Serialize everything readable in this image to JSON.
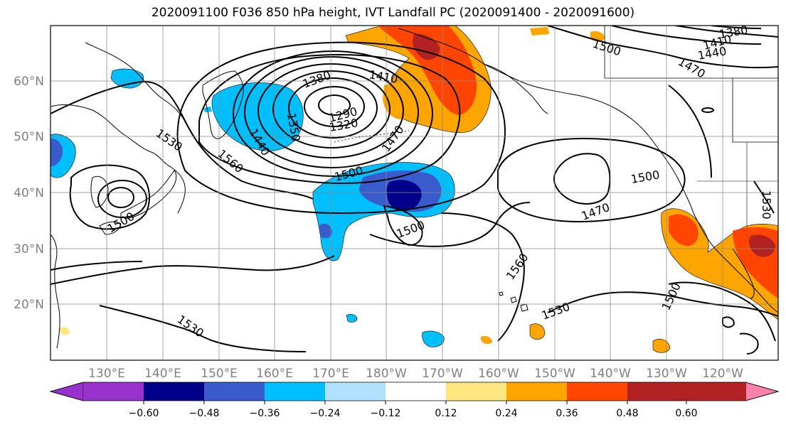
{
  "title": "2020091100 F036 850 hPa height, IVT Landfall PC (2020091400 - 2020091600)",
  "lat_labels": [
    "60°N",
    "50°N",
    "40°N",
    "30°N",
    "20°N"
  ],
  "lon_labels": [
    "130°E",
    "140°E",
    "150°E",
    "160°E",
    "170°E",
    "180°W",
    "170°W",
    "160°W",
    "150°W",
    "140°W",
    "130°W",
    "120°W"
  ],
  "colorbar": {
    "ticks": [
      "−0.60",
      "−0.48",
      "−0.36",
      "−0.24",
      "−0.12",
      "0.12",
      "0.24",
      "0.36",
      "0.48",
      "0.60"
    ],
    "colors": [
      "#9932cc",
      "#00008b",
      "#3a5bcc",
      "#00bfff",
      "#b0e2ff",
      "#ffffff",
      "#ffe680",
      "#ffa500",
      "#ff4500",
      "#b22222",
      "#ff82ab"
    ]
  },
  "contour_labels": [
    {
      "text": "1380"
    },
    {
      "text": "1410"
    },
    {
      "text": "1350"
    },
    {
      "text": "1440"
    },
    {
      "text": "1290"
    },
    {
      "text": "1320"
    },
    {
      "text": "1470"
    },
    {
      "text": "1500"
    },
    {
      "text": "1530"
    },
    {
      "text": "1560"
    },
    {
      "text": "1500"
    },
    {
      "text": "1500"
    },
    {
      "text": "1470"
    },
    {
      "text": "1500"
    },
    {
      "text": "1560"
    },
    {
      "text": "1530"
    },
    {
      "text": "1500"
    },
    {
      "text": "1530"
    },
    {
      "text": "1500"
    },
    {
      "text": "1410"
    },
    {
      "text": "1440"
    },
    {
      "text": "1470"
    },
    {
      "text": "1380"
    },
    {
      "text": "1530"
    }
  ]
}
